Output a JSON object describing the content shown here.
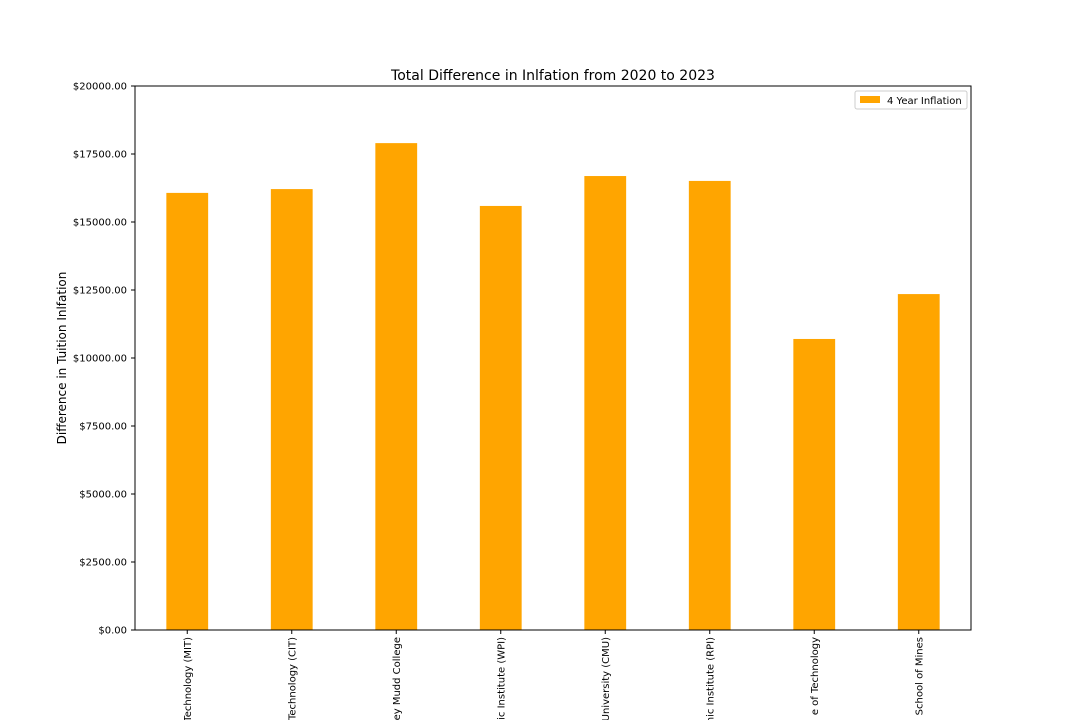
{
  "chart_data": {
    "type": "bar",
    "title": "Total Difference in Inlfation from 2020 to 2023",
    "ylabel": "Difference in Tuition Inlfation",
    "categories": [
      "Technology (MIT)",
      "Technology (CIT)",
      "ey Mudd College",
      "ic Institute (WPI)",
      "University (CMU)",
      "nic Institute (RPI)",
      "e of Technology",
      "School of Mines"
    ],
    "series": [
      {
        "name": "4 Year Inflation",
        "color": "#ffa500",
        "values": [
          16070,
          16210,
          17900,
          15590,
          16690,
          16510,
          10700,
          12350
        ]
      }
    ],
    "ylim": [
      0,
      20000
    ],
    "yticks": [
      {
        "value": 0,
        "label": "$0.00"
      },
      {
        "value": 2500,
        "label": "$2500.00"
      },
      {
        "value": 5000,
        "label": "$5000.00"
      },
      {
        "value": 7500,
        "label": "$7500.00"
      },
      {
        "value": 10000,
        "label": "$10000.00"
      },
      {
        "value": 12500,
        "label": "$12500.00"
      },
      {
        "value": 15000,
        "label": "$15000.00"
      },
      {
        "value": 17500,
        "label": "$17500.00"
      },
      {
        "value": 20000,
        "label": "$20000.00"
      }
    ],
    "legend": "upper right",
    "grid": false
  }
}
